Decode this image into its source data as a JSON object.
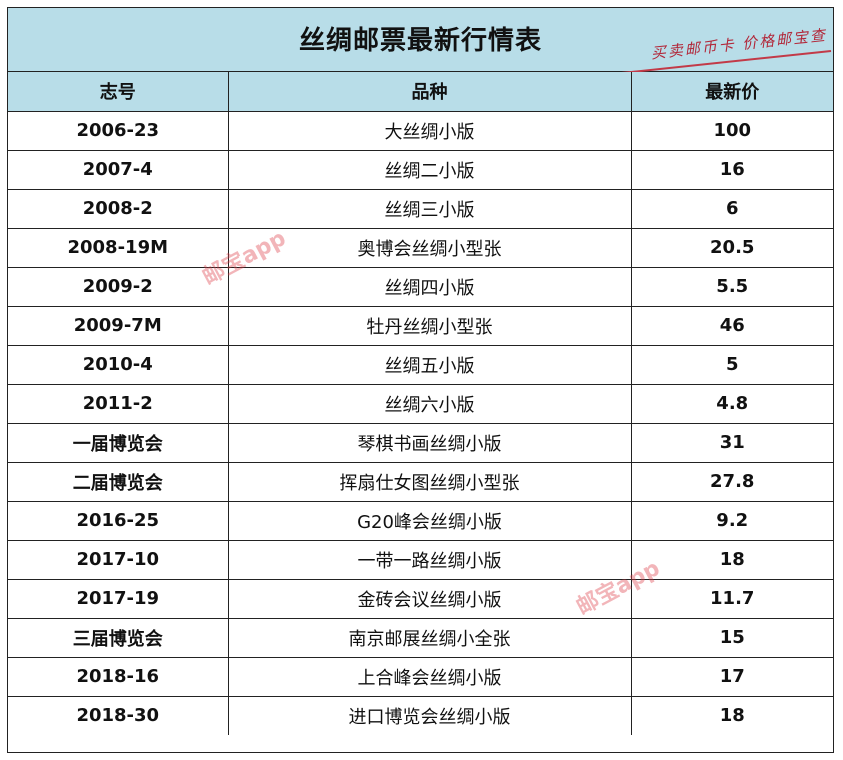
{
  "title": "丝绸邮票最新行情表",
  "stamp_text": "买卖邮币卡 价格邮宝查",
  "watermark": "邮宝app",
  "columns": [
    "志号",
    "品种",
    "最新价"
  ],
  "rows": [
    [
      "2006-23",
      "大丝绸小版",
      "100"
    ],
    [
      "2007-4",
      "丝绸二小版",
      "16"
    ],
    [
      "2008-2",
      "丝绸三小版",
      "6"
    ],
    [
      "2008-19M",
      "奥博会丝绸小型张",
      "20.5"
    ],
    [
      "2009-2",
      "丝绸四小版",
      "5.5"
    ],
    [
      "2009-7M",
      "牡丹丝绸小型张",
      "46"
    ],
    [
      "2010-4",
      "丝绸五小版",
      "5"
    ],
    [
      "2011-2",
      "丝绸六小版",
      "4.8"
    ],
    [
      "一届博览会",
      "琴棋书画丝绸小版",
      "31"
    ],
    [
      "二届博览会",
      "挥扇仕女图丝绸小型张",
      "27.8"
    ],
    [
      "2016-25",
      "G20峰会丝绸小版",
      "9.2"
    ],
    [
      "2017-10",
      "一带一路丝绸小版",
      "18"
    ],
    [
      "2017-19",
      "金砖会议丝绸小版",
      "11.7"
    ],
    [
      "三届博览会",
      "南京邮展丝绸小全张",
      "15"
    ],
    [
      "2018-16",
      "上合峰会丝绸小版",
      "17"
    ],
    [
      "2018-30",
      "进口博览会丝绸小版",
      "18"
    ]
  ],
  "colors": {
    "header_bg": "#b8dde8",
    "border": "#222222",
    "stamp": "#b2283a",
    "watermark": "#dc3c46"
  }
}
